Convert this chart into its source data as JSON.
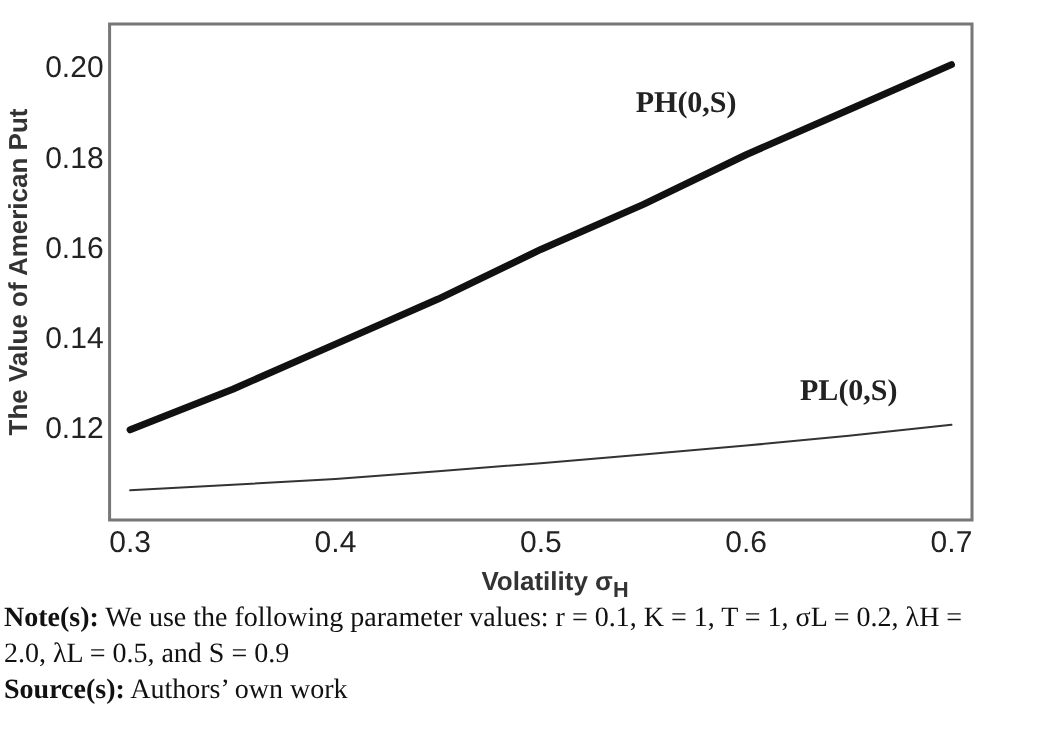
{
  "chart_data": {
    "type": "line",
    "xlabel": "Volatility σ$_{H}$",
    "ylabel": "The Value of American Put",
    "x": [
      0.3,
      0.35,
      0.4,
      0.45,
      0.5,
      0.55,
      0.6,
      0.65,
      0.7
    ],
    "series": [
      {
        "name": "PH(0,S)",
        "color": "#111111",
        "values": [
          0.12,
          0.129,
          0.139,
          0.149,
          0.16,
          0.17,
          0.181,
          0.191,
          0.201
        ]
      },
      {
        "name": "PL(0,S)",
        "color": "#333333",
        "values": [
          0.1066,
          0.1078,
          0.1091,
          0.1108,
          0.1126,
          0.1145,
          0.1165,
          0.1187,
          0.1211
        ]
      }
    ],
    "xlim": [
      0.29,
      0.71
    ],
    "xticks": [
      0.3,
      0.4,
      0.5,
      0.6,
      0.7
    ],
    "ylim": [
      0.1,
      0.21
    ],
    "yticks": [
      {
        "value": 0.12,
        "label": "0.12"
      },
      {
        "value": 0.14,
        "label": "0.14"
      },
      {
        "value": 0.16,
        "label": "0.16"
      },
      {
        "value": 0.18,
        "label": "0.18"
      },
      {
        "value": 0.2,
        "label": "0.20"
      }
    ],
    "grid": false,
    "legend": false,
    "marker": "none",
    "line_style": "solid",
    "annotations": [
      "Note(s): We use the following parameter values: r = 0.1, K = 1, T = 1, σL = 0.2, λH = 2.0, λL = 0.5, and S = 0.9",
      "Source(s): Authors’ own work"
    ]
  }
}
